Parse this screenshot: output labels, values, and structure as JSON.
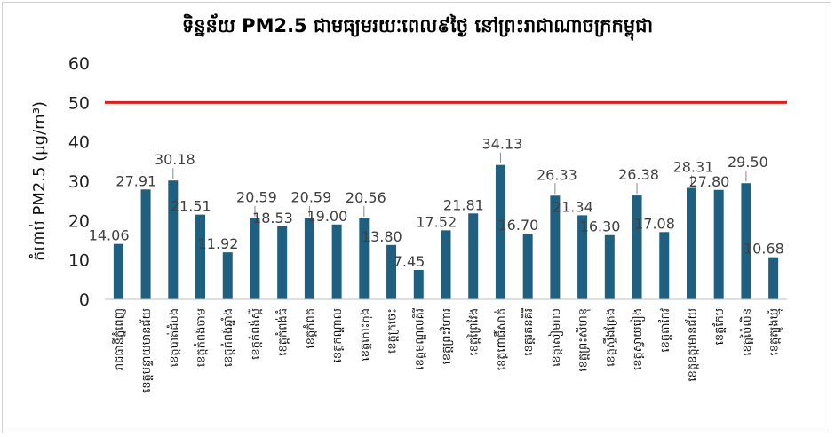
{
  "chart_data": {
    "type": "bar",
    "title": "ទិន្នន័យ PM2.5 ជាមធ្យមរយៈពេល៩ថ្ងៃ នៅព្រះរាជាណាចក្រកម្ពុជា",
    "ylabel": "កំហាប់ PM2.5 (µg/m³)",
    "xlabel": "",
    "ylim": [
      0,
      60
    ],
    "yticks": [
      0,
      10,
      20,
      30,
      40,
      50,
      60
    ],
    "grid": false,
    "legend": "none",
    "bar_color": "#1f5f7f",
    "threshold": {
      "value": 50,
      "color": "#d42020"
    },
    "categories": [
      "រាជធានីភ្នំពេញ",
      "ខេត្តបន្ទាយមានជ័យ",
      "ខេត្តបាត់ដំបង",
      "ខេត្តកំពង់ចាម",
      "ខេត្តកំពង់ឆ្នាំង",
      "ខេត្តកំពង់ស្ពឺ",
      "ខេត្តកំពង់ធំ",
      "ខេត្តកំពត",
      "ខេត្តកណ្ដាល",
      "ខេត្តកោះកុង",
      "ខេត្តក្រចេះ",
      "ខេត្តមណ្ឌលគិរី",
      "ខេត្តព្រះវិហារ",
      "ខេត្តព្រៃវែង",
      "ខេត្តពោធិ៍សាត់",
      "ខេត្តរតនគិរី",
      "ខេត្តសៀមរាប",
      "ខេត្តព្រះសីហនុ",
      "ខេត្តស្ទឹងត្រែង",
      "ខេត្តស្វាយរៀង",
      "ខេត្តតាកែវ",
      "ខេត្តឧត្តរមានជ័យ",
      "ខេត្តកែប",
      "ខេត្តប៉ៃលិន",
      "ខេត្តត្បូងឃ្មុំ"
    ],
    "values": [
      14.06,
      27.91,
      30.18,
      21.51,
      11.92,
      20.59,
      18.53,
      20.59,
      19.0,
      20.56,
      13.8,
      7.45,
      17.52,
      21.81,
      34.13,
      16.7,
      26.33,
      21.34,
      16.3,
      26.38,
      17.08,
      28.31,
      27.8,
      29.5,
      10.68
    ],
    "value_labels": [
      "14.06",
      "27.91",
      "30.18",
      "21.51",
      "11.92",
      "20.59",
      "18.53",
      "20.59",
      "19.00",
      "20.56",
      "13.80",
      "7.45",
      "17.52",
      "21.81",
      "34.13",
      "16.70",
      "26.33",
      "21.34",
      "16.30",
      "26.38",
      "17.08",
      "28.31",
      "27.80",
      "29.50",
      "10.68"
    ]
  }
}
